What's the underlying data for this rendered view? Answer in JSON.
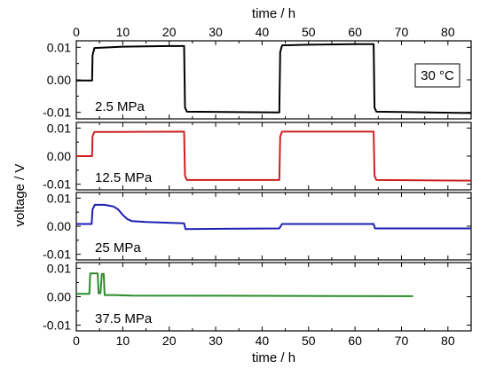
{
  "chart_data": {
    "type": "line",
    "x_axis": {
      "label": "time / h",
      "range": [
        0,
        85
      ],
      "ticks": [
        0,
        10,
        20,
        30,
        40,
        50,
        60,
        70,
        80
      ]
    },
    "y_axis": {
      "label": "voltage / V",
      "range": [
        -0.012,
        0.012
      ],
      "ticks": [
        -0.01,
        0.0,
        0.01
      ],
      "tick_labels": [
        "-0.01",
        "0.00",
        "0.01"
      ]
    },
    "annotation": "30 °C",
    "grid": false,
    "panels": [
      {
        "label": "2.5 MPa",
        "color": "#000000",
        "series": {
          "x": [
            0,
            3.4,
            3.5,
            3.9,
            10,
            20,
            23.2,
            23.4,
            23.8,
            43.7,
            43.9,
            44.3,
            50,
            60,
            64,
            64.2,
            64.6,
            85
          ],
          "y": [
            -0.0002,
            -0.0002,
            0.0075,
            0.0098,
            0.0102,
            0.0104,
            0.0104,
            -0.0085,
            -0.0098,
            -0.01,
            0.0085,
            0.0106,
            0.0108,
            0.011,
            0.011,
            -0.0085,
            -0.0098,
            -0.0102
          ]
        }
      },
      {
        "label": "12.5 MPa",
        "color": "#cc2020",
        "series": {
          "x": [
            0,
            3.4,
            3.5,
            3.9,
            23.2,
            23.4,
            23.8,
            43.7,
            43.9,
            44.3,
            64,
            64.2,
            64.6,
            85
          ],
          "y": [
            0.0,
            0.0,
            0.007,
            0.0086,
            0.0087,
            -0.007,
            -0.0085,
            -0.0085,
            0.007,
            0.0087,
            0.0087,
            -0.007,
            -0.0085,
            -0.0087
          ]
        }
      },
      {
        "label": "25 MPa",
        "color": "#1e1eb4",
        "series": {
          "x": [
            0,
            3.3,
            3.5,
            4,
            6,
            8,
            9,
            10,
            11,
            12,
            15,
            23.2,
            23.5,
            43.7,
            44.3,
            64,
            64.3,
            85
          ],
          "y": [
            0.0008,
            0.0008,
            0.006,
            0.0076,
            0.0076,
            0.007,
            0.006,
            0.004,
            0.0025,
            0.0018,
            0.0015,
            0.001,
            -0.001,
            -0.0008,
            0.0008,
            0.0008,
            -0.0008,
            -0.0008
          ]
        }
      },
      {
        "label": "37.5 MPa",
        "color": "#2a8a2a",
        "series": {
          "x": [
            0,
            2.8,
            3.0,
            4.6,
            4.8,
            5.2,
            5.5,
            5.9,
            6.1,
            8,
            12,
            72.5
          ],
          "y": [
            0.001,
            0.001,
            0.0082,
            0.0082,
            0.0012,
            0.0012,
            0.008,
            0.008,
            0.0006,
            0.0006,
            0.0004,
            0.0002
          ]
        }
      }
    ]
  }
}
